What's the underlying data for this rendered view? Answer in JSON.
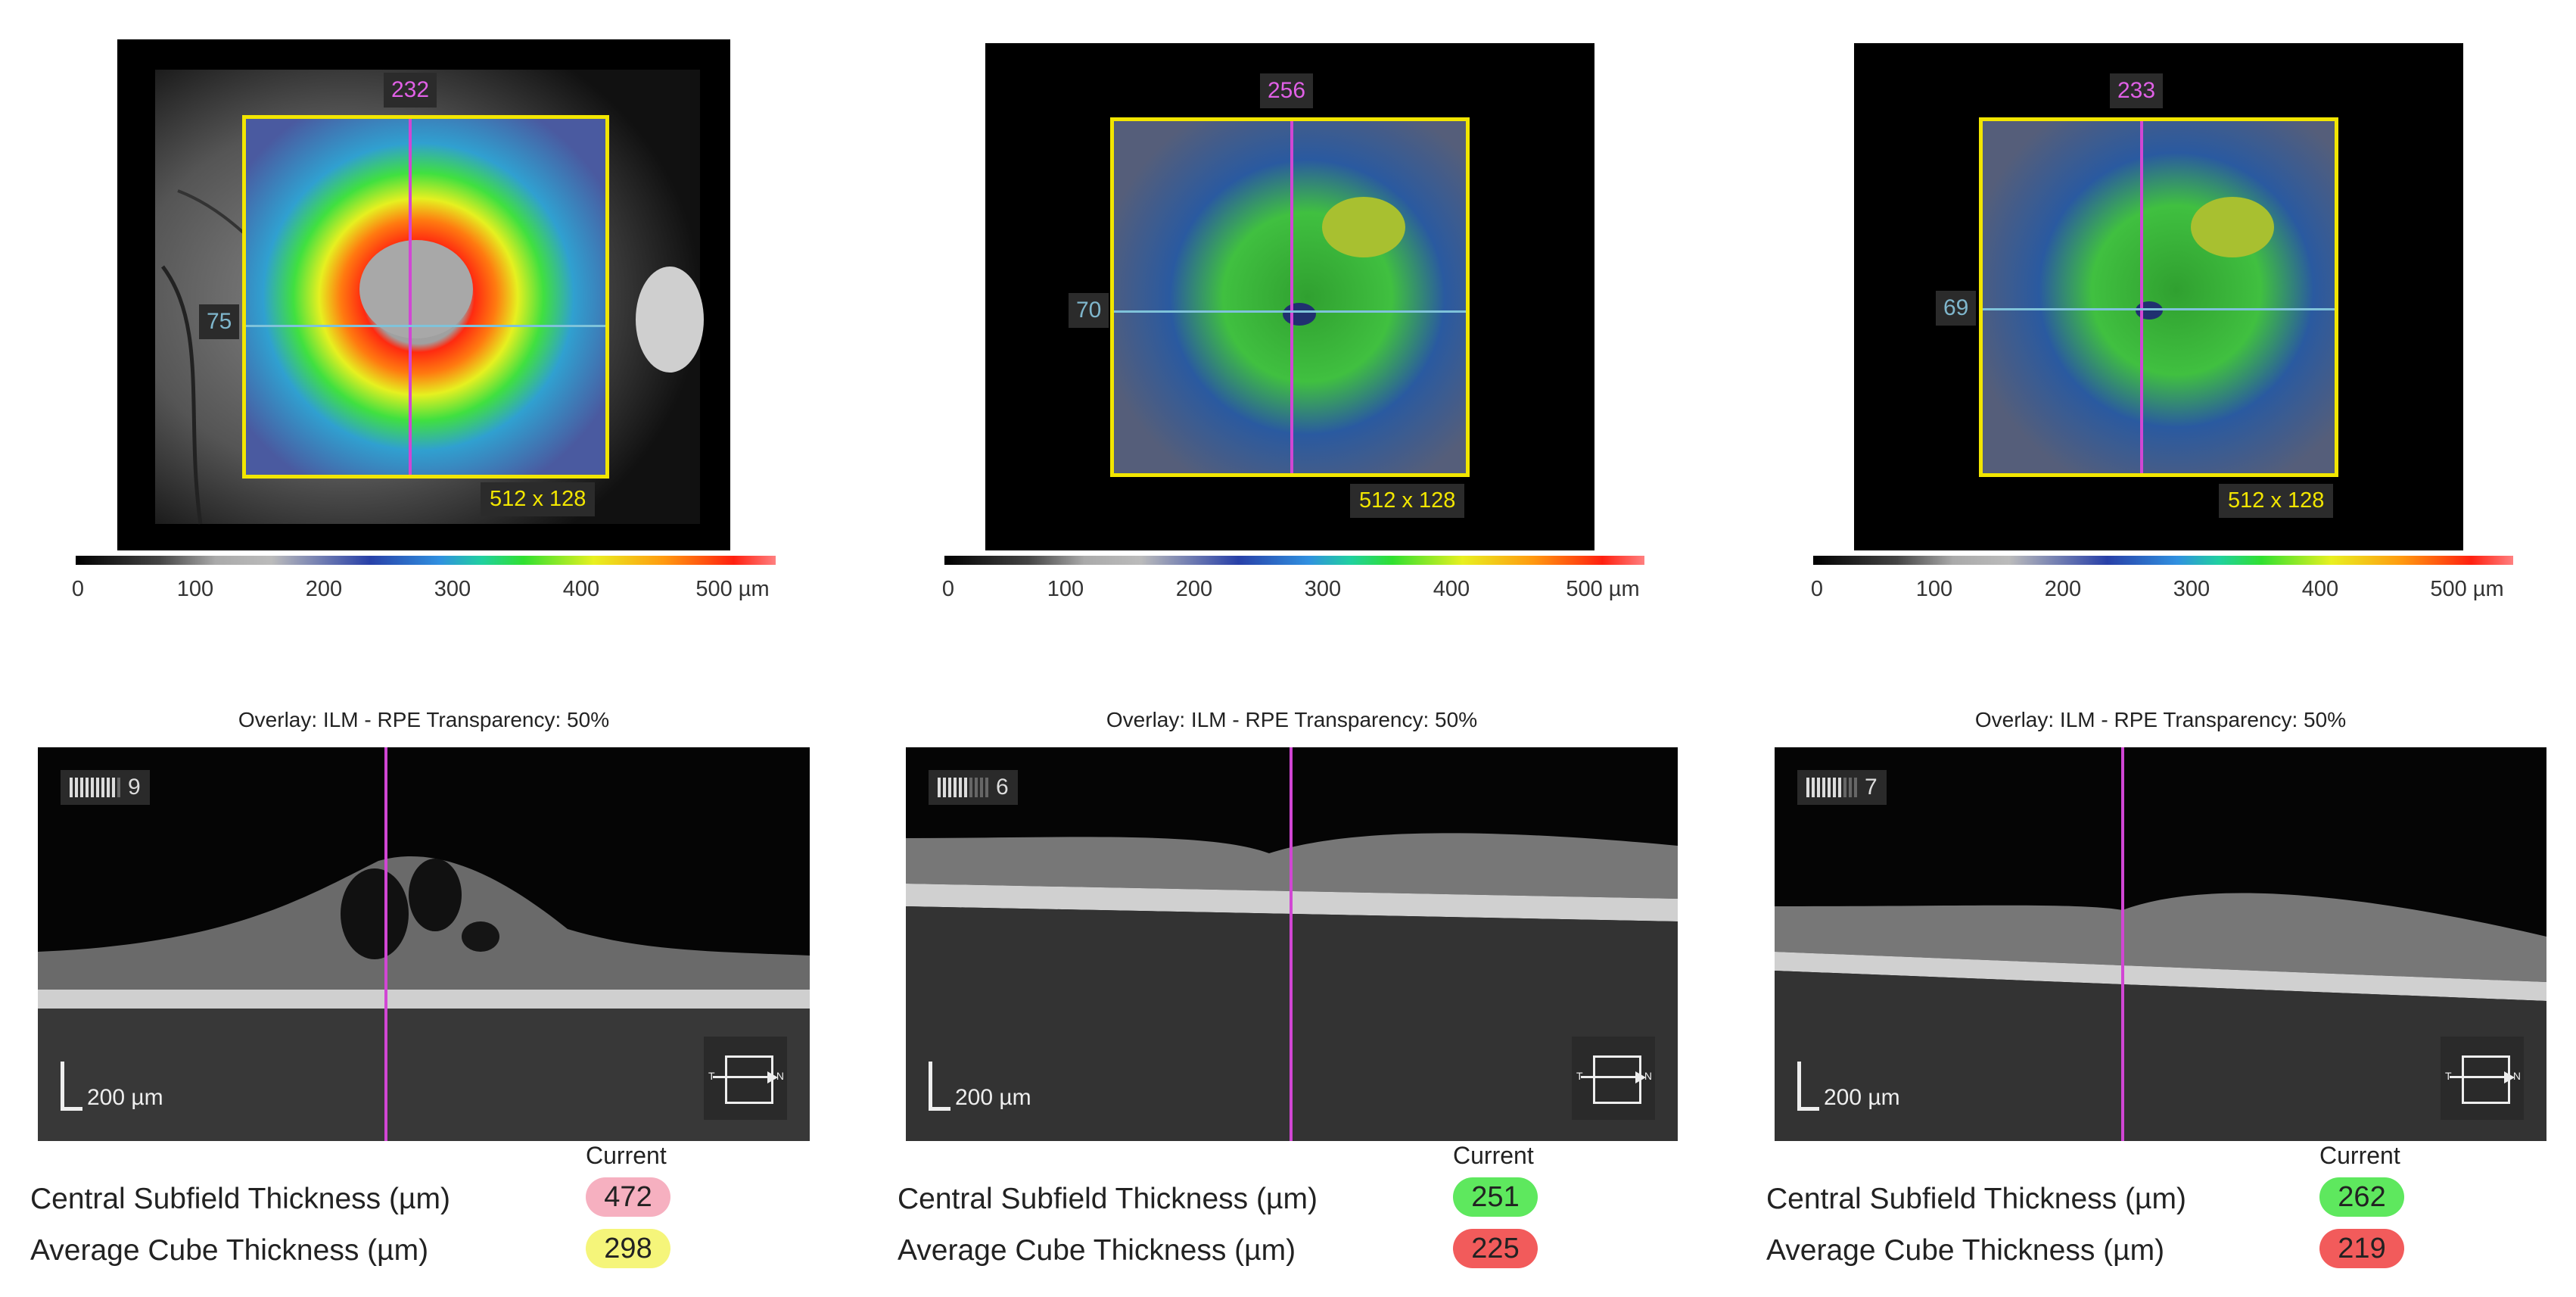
{
  "colorbar": {
    "ticks": [
      "0",
      "100",
      "200",
      "300",
      "400",
      "500 µm"
    ],
    "tick_values": [
      0,
      100,
      200,
      300,
      400,
      500
    ]
  },
  "overlay_title": "Overlay: ILM - RPE Transparency: 50%",
  "metrics_header": "Current",
  "metric_labels": {
    "cst": "Central Subfield Thickness (µm)",
    "act": "Average Cube Thickness (µm)"
  },
  "colors": {
    "pink": "#f6b0c0",
    "yellow": "#f5f57a",
    "green": "#5ee85e",
    "red": "#f25b5b",
    "crosshair_v": "#d146d4",
    "crosshair_h": "#7fc3da",
    "box": "#f2e600"
  },
  "panels": [
    {
      "vertical_label": "232",
      "horizontal_label": "75",
      "dims_label": "512 x 128",
      "signal_strength": "9",
      "signal_level": 9,
      "scale_label": "200 µm",
      "dir_left": "T",
      "dir_right": "N",
      "cst_value": "472",
      "cst_color": "pink",
      "act_value": "298",
      "act_color": "yellow"
    },
    {
      "vertical_label": "256",
      "horizontal_label": "70",
      "dims_label": "512 x 128",
      "signal_strength": "6",
      "signal_level": 6,
      "scale_label": "200 µm",
      "dir_left": "T",
      "dir_right": "N",
      "cst_value": "251",
      "cst_color": "green",
      "act_value": "225",
      "act_color": "red"
    },
    {
      "vertical_label": "233",
      "horizontal_label": "69",
      "dims_label": "512 x 128",
      "signal_strength": "7",
      "signal_level": 7,
      "scale_label": "200 µm",
      "dir_left": "T",
      "dir_right": "N",
      "cst_value": "262",
      "cst_color": "green",
      "act_value": "219",
      "act_color": "red"
    }
  ]
}
